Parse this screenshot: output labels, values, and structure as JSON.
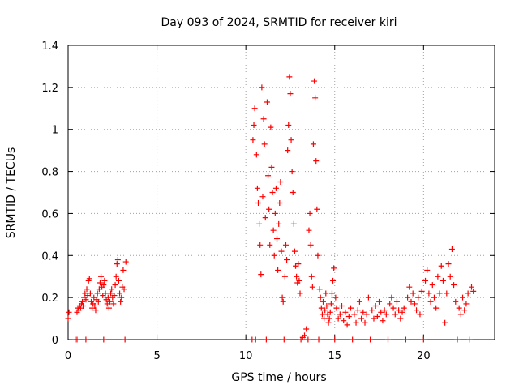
{
  "chart_data": {
    "type": "scatter",
    "title": "Day 093 of 2024, SRMTID for receiver kiri",
    "xlabel": "GPS time / hours",
    "ylabel": "SRMTID / TECUs",
    "xlim": [
      0,
      24
    ],
    "ylim": [
      0,
      1.4
    ],
    "grid": true,
    "marker": "+",
    "series_color": "#ff0000",
    "x_ticks": [
      0,
      5,
      10,
      15,
      20
    ],
    "x_tick_labels": [
      "0",
      "5",
      "10",
      "15",
      "20"
    ],
    "y_ticks": [
      0,
      0.2,
      0.4,
      0.6,
      0.8,
      1.0,
      1.2,
      1.4
    ],
    "y_tick_labels": [
      "0",
      "0.2",
      "0.4",
      "0.6",
      "0.8",
      "1",
      "1.2",
      "1.4"
    ],
    "series": [
      {
        "name": "SRMTID",
        "points": [
          [
            0.0,
            0.1
          ],
          [
            0.05,
            0.13
          ],
          [
            0.4,
            0.0
          ],
          [
            0.5,
            0.0
          ],
          [
            0.5,
            0.13
          ],
          [
            0.55,
            0.15
          ],
          [
            0.6,
            0.14
          ],
          [
            0.65,
            0.16
          ],
          [
            0.7,
            0.15
          ],
          [
            0.75,
            0.17
          ],
          [
            0.8,
            0.18
          ],
          [
            0.85,
            0.16
          ],
          [
            0.9,
            0.2
          ],
          [
            0.95,
            0.22
          ],
          [
            1.0,
            0.0
          ],
          [
            1.0,
            0.19
          ],
          [
            1.05,
            0.24
          ],
          [
            1.1,
            0.21
          ],
          [
            1.15,
            0.28
          ],
          [
            1.2,
            0.29
          ],
          [
            1.25,
            0.22
          ],
          [
            1.3,
            0.18
          ],
          [
            1.35,
            0.15
          ],
          [
            1.4,
            0.17
          ],
          [
            1.45,
            0.2
          ],
          [
            1.5,
            0.16
          ],
          [
            1.55,
            0.14
          ],
          [
            1.6,
            0.19
          ],
          [
            1.65,
            0.22
          ],
          [
            1.7,
            0.18
          ],
          [
            1.75,
            0.24
          ],
          [
            1.8,
            0.27
          ],
          [
            1.85,
            0.3
          ],
          [
            1.9,
            0.25
          ],
          [
            1.95,
            0.21
          ],
          [
            2.0,
            0.0
          ],
          [
            2.0,
            0.26
          ],
          [
            2.05,
            0.28
          ],
          [
            2.1,
            0.22
          ],
          [
            2.15,
            0.19
          ],
          [
            2.2,
            0.17
          ],
          [
            2.25,
            0.2
          ],
          [
            2.3,
            0.15
          ],
          [
            2.35,
            0.18
          ],
          [
            2.4,
            0.22
          ],
          [
            2.45,
            0.24
          ],
          [
            2.5,
            0.2
          ],
          [
            2.55,
            0.17
          ],
          [
            2.6,
            0.21
          ],
          [
            2.65,
            0.26
          ],
          [
            2.7,
            0.3
          ],
          [
            2.75,
            0.36
          ],
          [
            2.8,
            0.38
          ],
          [
            2.85,
            0.28
          ],
          [
            2.9,
            0.22
          ],
          [
            2.95,
            0.18
          ],
          [
            3.0,
            0.2
          ],
          [
            3.05,
            0.25
          ],
          [
            3.1,
            0.33
          ],
          [
            3.15,
            0.24
          ],
          [
            3.2,
            0.0
          ],
          [
            3.25,
            0.37
          ],
          [
            10.35,
            0.0
          ],
          [
            10.4,
            0.95
          ],
          [
            10.45,
            1.02
          ],
          [
            10.5,
            1.1
          ],
          [
            10.55,
            0.0
          ],
          [
            10.6,
            0.88
          ],
          [
            10.65,
            0.72
          ],
          [
            10.7,
            0.65
          ],
          [
            10.75,
            0.55
          ],
          [
            10.8,
            0.45
          ],
          [
            10.85,
            0.31
          ],
          [
            10.9,
            1.2
          ],
          [
            10.95,
            0.68
          ],
          [
            11.0,
            1.05
          ],
          [
            11.05,
            0.93
          ],
          [
            11.1,
            0.58
          ],
          [
            11.15,
            0.0
          ],
          [
            11.2,
            1.13
          ],
          [
            11.25,
            0.78
          ],
          [
            11.3,
            0.62
          ],
          [
            11.35,
            0.45
          ],
          [
            11.4,
            1.01
          ],
          [
            11.45,
            0.82
          ],
          [
            11.5,
            0.7
          ],
          [
            11.55,
            0.52
          ],
          [
            11.6,
            0.4
          ],
          [
            11.65,
            0.6
          ],
          [
            11.7,
            0.72
          ],
          [
            11.75,
            0.48
          ],
          [
            11.8,
            0.33
          ],
          [
            11.85,
            0.55
          ],
          [
            11.9,
            0.65
          ],
          [
            11.95,
            0.75
          ],
          [
            12.0,
            0.42
          ],
          [
            12.05,
            0.2
          ],
          [
            12.1,
            0.18
          ],
          [
            12.15,
            0.0
          ],
          [
            12.2,
            0.3
          ],
          [
            12.25,
            0.45
          ],
          [
            12.3,
            0.38
          ],
          [
            12.35,
            0.9
          ],
          [
            12.4,
            1.02
          ],
          [
            12.45,
            1.25
          ],
          [
            12.5,
            1.17
          ],
          [
            12.55,
            0.95
          ],
          [
            12.6,
            0.8
          ],
          [
            12.65,
            0.7
          ],
          [
            12.7,
            0.55
          ],
          [
            12.75,
            0.42
          ],
          [
            12.8,
            0.35
          ],
          [
            12.85,
            0.3
          ],
          [
            12.9,
            0.27
          ],
          [
            12.95,
            0.36
          ],
          [
            13.0,
            0.28
          ],
          [
            13.05,
            0.22
          ],
          [
            13.1,
            0.0
          ],
          [
            13.2,
            0.01
          ],
          [
            13.3,
            0.02
          ],
          [
            13.4,
            0.05
          ],
          [
            13.5,
            0.0
          ],
          [
            13.55,
            0.52
          ],
          [
            13.6,
            0.6
          ],
          [
            13.65,
            0.45
          ],
          [
            13.7,
            0.3
          ],
          [
            13.75,
            0.25
          ],
          [
            13.8,
            0.93
          ],
          [
            13.85,
            1.23
          ],
          [
            13.9,
            1.15
          ],
          [
            13.95,
            0.85
          ],
          [
            14.0,
            0.62
          ],
          [
            14.05,
            0.4
          ],
          [
            14.1,
            0.0
          ],
          [
            14.15,
            0.24
          ],
          [
            14.2,
            0.2
          ],
          [
            14.25,
            0.15
          ],
          [
            14.3,
            0.12
          ],
          [
            14.35,
            0.18
          ],
          [
            14.4,
            0.1
          ],
          [
            14.45,
            0.14
          ],
          [
            14.5,
            0.22
          ],
          [
            14.55,
            0.16
          ],
          [
            14.6,
            0.12
          ],
          [
            14.65,
            0.08
          ],
          [
            14.7,
            0.1
          ],
          [
            14.75,
            0.13
          ],
          [
            14.8,
            0.17
          ],
          [
            14.85,
            0.22
          ],
          [
            14.9,
            0.28
          ],
          [
            14.95,
            0.34
          ],
          [
            15.0,
            0.0
          ],
          [
            15.05,
            0.2
          ],
          [
            15.1,
            0.15
          ],
          [
            15.2,
            0.1
          ],
          [
            15.3,
            0.12
          ],
          [
            15.4,
            0.16
          ],
          [
            15.5,
            0.09
          ],
          [
            15.6,
            0.13
          ],
          [
            15.7,
            0.07
          ],
          [
            15.8,
            0.11
          ],
          [
            15.9,
            0.15
          ],
          [
            16.0,
            0.0
          ],
          [
            16.1,
            0.12
          ],
          [
            16.2,
            0.08
          ],
          [
            16.3,
            0.14
          ],
          [
            16.4,
            0.18
          ],
          [
            16.5,
            0.1
          ],
          [
            16.6,
            0.13
          ],
          [
            16.7,
            0.08
          ],
          [
            16.8,
            0.12
          ],
          [
            16.9,
            0.2
          ],
          [
            17.0,
            0.0
          ],
          [
            17.1,
            0.14
          ],
          [
            17.2,
            0.1
          ],
          [
            17.3,
            0.16
          ],
          [
            17.4,
            0.11
          ],
          [
            17.5,
            0.18
          ],
          [
            17.6,
            0.13
          ],
          [
            17.7,
            0.09
          ],
          [
            17.8,
            0.14
          ],
          [
            17.9,
            0.12
          ],
          [
            18.0,
            0.0
          ],
          [
            18.1,
            0.17
          ],
          [
            18.2,
            0.2
          ],
          [
            18.3,
            0.15
          ],
          [
            18.4,
            0.12
          ],
          [
            18.5,
            0.18
          ],
          [
            18.6,
            0.14
          ],
          [
            18.7,
            0.1
          ],
          [
            18.8,
            0.13
          ],
          [
            18.9,
            0.15
          ],
          [
            19.0,
            0.0
          ],
          [
            19.1,
            0.2
          ],
          [
            19.2,
            0.25
          ],
          [
            19.3,
            0.18
          ],
          [
            19.4,
            0.22
          ],
          [
            19.5,
            0.17
          ],
          [
            19.6,
            0.14
          ],
          [
            19.7,
            0.2
          ],
          [
            19.8,
            0.12
          ],
          [
            19.9,
            0.23
          ],
          [
            20.0,
            0.0
          ],
          [
            20.1,
            0.28
          ],
          [
            20.2,
            0.33
          ],
          [
            20.3,
            0.22
          ],
          [
            20.4,
            0.18
          ],
          [
            20.5,
            0.26
          ],
          [
            20.6,
            0.2
          ],
          [
            20.7,
            0.15
          ],
          [
            20.8,
            0.3
          ],
          [
            20.9,
            0.22
          ],
          [
            21.0,
            0.35
          ],
          [
            21.1,
            0.28
          ],
          [
            21.2,
            0.08
          ],
          [
            21.3,
            0.22
          ],
          [
            21.4,
            0.36
          ],
          [
            21.5,
            0.3
          ],
          [
            21.6,
            0.43
          ],
          [
            21.7,
            0.26
          ],
          [
            21.8,
            0.18
          ],
          [
            21.9,
            0.0
          ],
          [
            22.0,
            0.15
          ],
          [
            22.1,
            0.12
          ],
          [
            22.2,
            0.2
          ],
          [
            22.3,
            0.14
          ],
          [
            22.4,
            0.17
          ],
          [
            22.5,
            0.22
          ],
          [
            22.6,
            0.0
          ],
          [
            22.7,
            0.25
          ],
          [
            22.8,
            0.23
          ]
        ]
      }
    ]
  }
}
